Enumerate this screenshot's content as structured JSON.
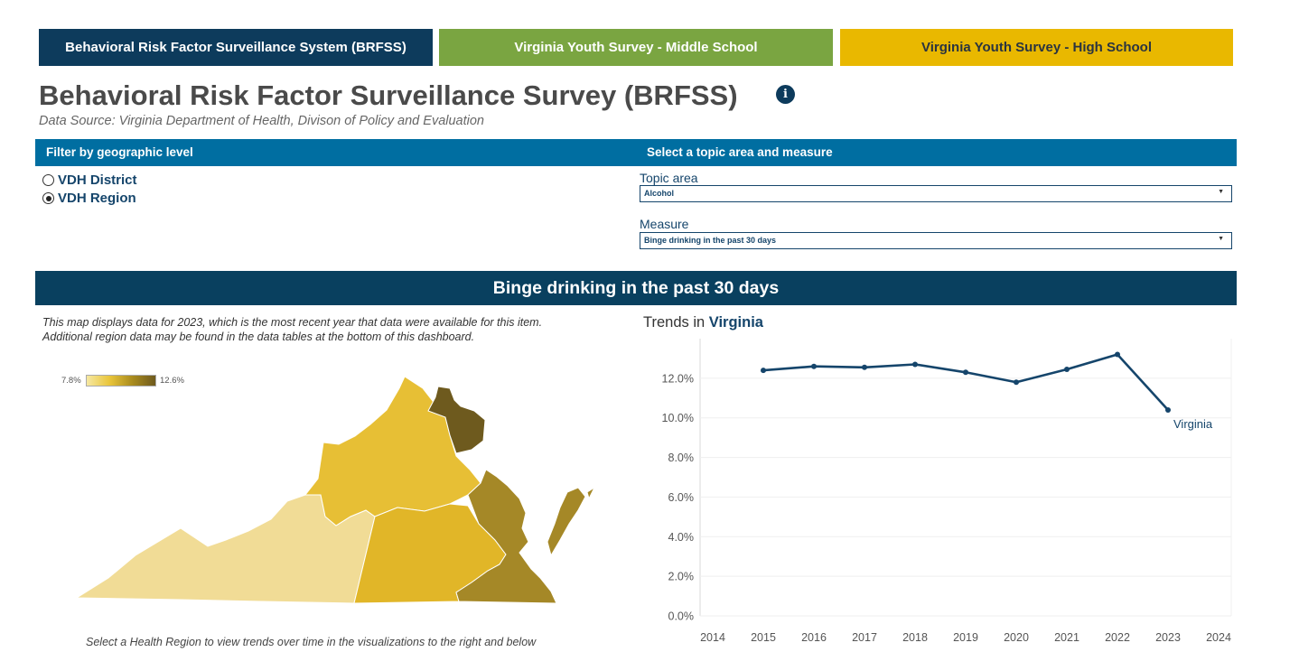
{
  "nav": {
    "brfss": "Behavioral Risk Factor Surveillance System (BRFSS)",
    "middle_school": "Virginia Youth Survey - Middle School",
    "high_school": "Virginia Youth Survey - High School"
  },
  "header": {
    "title": "Behavioral Risk Factor Surveillance Survey (BRFSS)",
    "info_icon": "i",
    "source": "Data Source: Virginia Department of Health, Divison of Policy and Evaluation"
  },
  "filters": {
    "geo_label": "Filter by geographic level",
    "topic_bar_label": "Select a topic area and measure",
    "geo_options": [
      {
        "label": "VDH District",
        "checked": false
      },
      {
        "label": "VDH Region",
        "checked": true
      }
    ],
    "topic_label": "Topic area",
    "topic_value": "Alcohol",
    "measure_label": "Measure",
    "measure_value": "Binge drinking in the past 30 days"
  },
  "section": {
    "title": "Binge drinking in the past 30 days"
  },
  "map": {
    "note_line1": "This map displays data for 2023, which is the most recent year that data were available for this item.",
    "note_line2": "Additional region data may be found in the data tables at the bottom of this dashboard.",
    "legend_min": "7.8%",
    "legend_max": "12.6%",
    "footer": "Select a Health Region to view trends over time in the visualizations to the right and below",
    "colors": {
      "southwest": "#f1dc96",
      "central": "#e1b628",
      "northwest": "#e7bf35",
      "eastern": "#a58827",
      "northern": "#6e5a1e"
    }
  },
  "trend": {
    "title_prefix": "Trends in",
    "title_place": "Virginia"
  },
  "chart_data": {
    "type": "line",
    "series": [
      {
        "name": "Virginia",
        "x": [
          2015,
          2016,
          2017,
          2018,
          2019,
          2020,
          2021,
          2022,
          2023
        ],
        "values": [
          12.4,
          12.6,
          12.55,
          12.7,
          12.3,
          11.8,
          12.45,
          13.2,
          10.4
        ]
      }
    ],
    "x_ticks": [
      2014,
      2015,
      2016,
      2017,
      2018,
      2019,
      2020,
      2021,
      2022,
      2023,
      2024
    ],
    "y_ticks": [
      "0.0%",
      "2.0%",
      "4.0%",
      "6.0%",
      "8.0%",
      "10.0%",
      "12.0%"
    ],
    "xlim": [
      2014,
      2024
    ],
    "ylim": [
      0,
      14
    ],
    "line_color": "#15456b",
    "grid": true
  }
}
